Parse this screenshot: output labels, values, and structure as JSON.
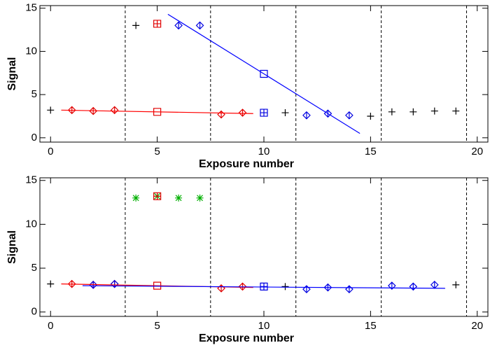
{
  "chart_data": [
    {
      "type": "scatter",
      "xlabel": "Exposure number",
      "ylabel": "Signal",
      "xlim": [
        -0.5,
        20.5
      ],
      "ylim": [
        -0.5,
        15.3
      ],
      "xticks": [
        0,
        5,
        10,
        15,
        20
      ],
      "yticks": [
        0,
        5,
        10,
        15
      ],
      "vlines": [
        3.5,
        7.5,
        11.5,
        15.5,
        19.5
      ],
      "series": [
        {
          "marker": "plus",
          "color": "#000000",
          "x": [
            0,
            4,
            11,
            15,
            16,
            17,
            18,
            19
          ],
          "values": [
            3.2,
            13,
            2.9,
            2.5,
            3.0,
            3.0,
            3.1,
            3.1
          ]
        },
        {
          "marker": "diamond",
          "color": "#e00000",
          "x": [
            1,
            2,
            3,
            8,
            9
          ],
          "values": [
            3.2,
            3.1,
            3.2,
            2.7,
            2.9
          ]
        },
        {
          "marker": "square",
          "color": "#e00000",
          "x": [
            5
          ],
          "values": [
            3.0
          ]
        },
        {
          "marker": "square-plus",
          "color": "#e00000",
          "x": [
            5
          ],
          "values": [
            13.2
          ]
        },
        {
          "marker": "diamond",
          "color": "#0000e0",
          "x": [
            6,
            7,
            12,
            13,
            14
          ],
          "values": [
            13,
            13,
            2.6,
            2.8,
            2.6
          ]
        },
        {
          "marker": "square",
          "color": "#0000e0",
          "x": [
            10
          ],
          "values": [
            7.4
          ]
        },
        {
          "marker": "square-plus",
          "color": "#0000e0",
          "x": [
            10
          ],
          "values": [
            2.9
          ]
        },
        {
          "marker": "line",
          "color": "#ff0000",
          "x": [
            0.5,
            9.5
          ],
          "values": [
            3.2,
            2.8
          ]
        },
        {
          "marker": "line",
          "color": "#0000ff",
          "x": [
            5.5,
            14.5
          ],
          "values": [
            14.3,
            0.5
          ]
        }
      ]
    },
    {
      "type": "scatter",
      "xlabel": "Exposure number",
      "ylabel": "Signal",
      "xlim": [
        -0.5,
        20.5
      ],
      "ylim": [
        -0.5,
        15.3
      ],
      "xticks": [
        0,
        5,
        10,
        15,
        20
      ],
      "yticks": [
        0,
        5,
        10,
        15
      ],
      "vlines": [
        3.5,
        7.5,
        11.5,
        15.5,
        19.5
      ],
      "series": [
        {
          "marker": "plus",
          "color": "#000000",
          "x": [
            0,
            11,
            19
          ],
          "values": [
            3.2,
            2.9,
            3.1
          ]
        },
        {
          "marker": "asterisk",
          "color": "#00b000",
          "x": [
            4,
            5,
            6,
            7
          ],
          "values": [
            13,
            13.2,
            13,
            13
          ]
        },
        {
          "marker": "diamond",
          "color": "#e00000",
          "x": [
            1,
            2,
            3,
            8,
            9
          ],
          "values": [
            3.2,
            3.1,
            3.2,
            2.7,
            2.9
          ]
        },
        {
          "marker": "square",
          "color": "#e00000",
          "x": [
            5
          ],
          "values": [
            3.0
          ]
        },
        {
          "marker": "square-plus",
          "color": "#e00000",
          "x": [
            5
          ],
          "values": [
            13.2
          ]
        },
        {
          "marker": "diamond",
          "color": "#0000e0",
          "x": [
            2,
            3,
            12,
            13,
            14,
            16,
            17,
            18
          ],
          "values": [
            3.1,
            3.2,
            2.6,
            2.8,
            2.6,
            3.0,
            2.9,
            3.1
          ]
        },
        {
          "marker": "square-plus",
          "color": "#0000e0",
          "x": [
            10
          ],
          "values": [
            2.9
          ]
        },
        {
          "marker": "line",
          "color": "#ff0000",
          "x": [
            0.5,
            9.5
          ],
          "values": [
            3.2,
            2.8
          ]
        },
        {
          "marker": "line",
          "color": "#0000ff",
          "x": [
            1.5,
            18.5
          ],
          "values": [
            3.0,
            2.7
          ]
        }
      ]
    }
  ]
}
